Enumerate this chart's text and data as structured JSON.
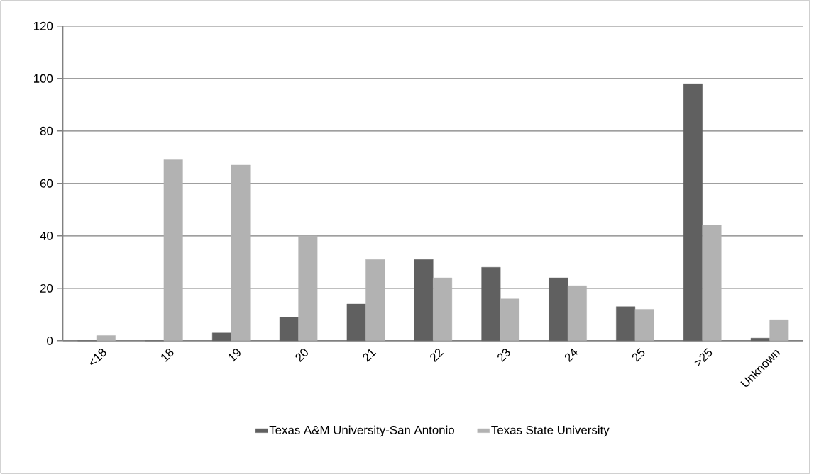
{
  "chart_data": {
    "type": "bar",
    "categories": [
      "<18",
      "18",
      "19",
      "20",
      "21",
      "22",
      "23",
      "24",
      "25",
      ">25",
      "Unknown"
    ],
    "series": [
      {
        "name": "Texas A&M University-San Antonio",
        "color": "#606060",
        "values": [
          0,
          0,
          3,
          9,
          14,
          31,
          28,
          24,
          13,
          98,
          1
        ]
      },
      {
        "name": "Texas State University",
        "color": "#b2b2b2",
        "values": [
          2,
          69,
          67,
          40,
          31,
          24,
          16,
          21,
          12,
          44,
          8
        ]
      }
    ],
    "ylim": [
      0,
      120
    ],
    "yticks": [
      0,
      20,
      40,
      60,
      80,
      100,
      120
    ],
    "grid": "y",
    "legend": "bottom"
  }
}
